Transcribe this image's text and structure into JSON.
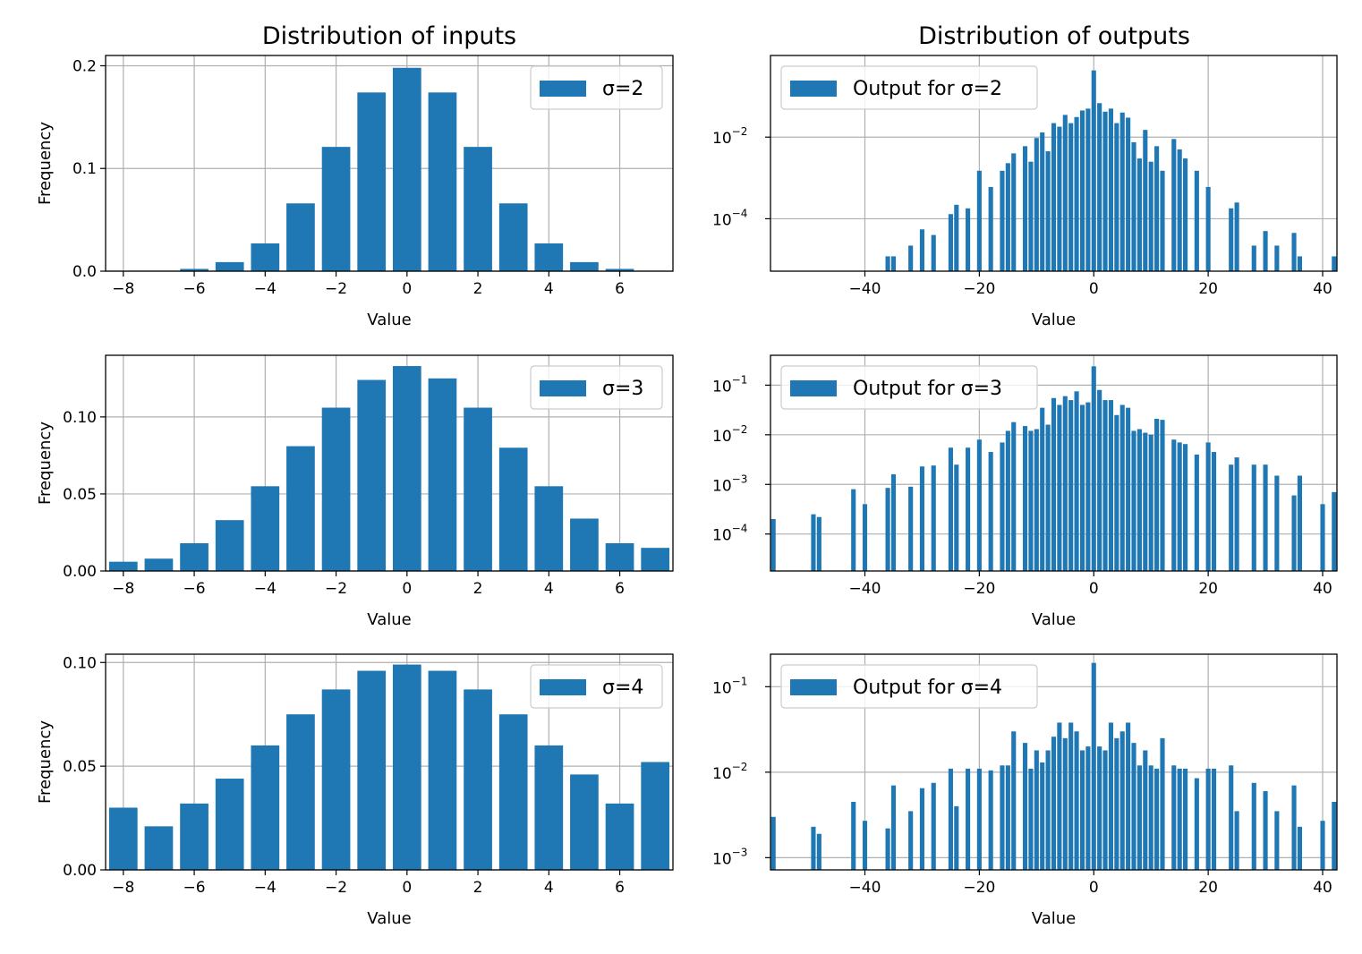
{
  "colors": {
    "bar": "#1f77b4",
    "grid": "#b0b0b0",
    "axis": "#000000"
  },
  "column_titles": {
    "left": "Distribution of inputs",
    "right": "Distribution of outputs"
  },
  "chart_data": [
    {
      "type": "bar",
      "panel": "inputs-sigma-2",
      "legend": "σ=2",
      "legend_position": "upper right",
      "xlabel": "Value",
      "ylabel": "Frequency",
      "x": [
        -8,
        -7,
        -6,
        -5,
        -4,
        -3,
        -2,
        -1,
        0,
        1,
        2,
        3,
        4,
        5,
        6,
        7
      ],
      "values": [
        0.0001,
        0.0004,
        0.0022,
        0.0088,
        0.027,
        0.066,
        0.121,
        0.174,
        0.198,
        0.174,
        0.121,
        0.066,
        0.027,
        0.0088,
        0.0022,
        0.0004
      ],
      "xlim": [
        -8.5,
        7.5
      ],
      "ylim": [
        0,
        0.21
      ],
      "xticks": [
        -8,
        -6,
        -4,
        -2,
        0,
        2,
        4,
        6
      ],
      "xtick_labels": [
        "−8",
        "−6",
        "−4",
        "−2",
        "0",
        "2",
        "4",
        "6"
      ],
      "yticks": [
        0,
        0.1,
        0.2
      ],
      "ytick_labels": [
        "0.0",
        "0.1",
        "0.2"
      ]
    },
    {
      "type": "bar",
      "panel": "outputs-sigma-2",
      "yscale": "log",
      "legend": "Output for σ=2",
      "legend_position": "upper left",
      "xlabel": "Value",
      "x": [
        -36,
        -35,
        -32,
        -30,
        -28,
        -25,
        -24,
        -22,
        -20,
        -18,
        -16,
        -15,
        -14,
        -12,
        -11,
        -10,
        -9,
        -8,
        -7,
        -6,
        -5,
        -4,
        -3,
        -2,
        -1,
        0,
        1,
        2,
        3,
        4,
        5,
        6,
        7,
        8,
        9,
        10,
        11,
        12,
        14,
        15,
        16,
        18,
        20,
        24,
        25,
        28,
        30,
        32,
        35,
        36,
        42
      ],
      "values": [
        1.2e-05,
        1.2e-05,
        2.2e-05,
        5.5e-05,
        4e-05,
        0.00013,
        0.00022,
        0.00018,
        0.0015,
        0.0006,
        0.0015,
        0.0023,
        0.004,
        0.006,
        0.0025,
        0.0095,
        0.013,
        0.0045,
        0.022,
        0.018,
        0.035,
        0.022,
        0.031,
        0.045,
        0.05,
        0.43,
        0.068,
        0.042,
        0.05,
        0.022,
        0.04,
        0.03,
        0.0075,
        0.003,
        0.015,
        0.0025,
        0.006,
        0.0015,
        0.009,
        0.005,
        0.003,
        0.0015,
        0.0006,
        0.00018,
        0.00025,
        2.2e-05,
        5e-05,
        2.2e-05,
        4.5e-05,
        1.2e-05,
        1.2e-05
      ],
      "xlim": [
        -56.5,
        42.5
      ],
      "ylim": [
        5.2e-06,
        1.0
      ],
      "xticks": [
        -40,
        -20,
        0,
        20,
        40
      ],
      "xtick_labels": [
        "−40",
        "−20",
        "0",
        "20",
        "40"
      ],
      "yticks": [
        0.0001,
        0.01
      ],
      "ytick_exponents": [
        "−4",
        "−2"
      ]
    },
    {
      "type": "bar",
      "panel": "inputs-sigma-3",
      "legend": "σ=3",
      "legend_position": "upper right",
      "xlabel": "Value",
      "ylabel": "Frequency",
      "x": [
        -8,
        -7,
        -6,
        -5,
        -4,
        -3,
        -2,
        -1,
        0,
        1,
        2,
        3,
        4,
        5,
        6,
        7
      ],
      "values": [
        0.006,
        0.008,
        0.018,
        0.033,
        0.055,
        0.081,
        0.106,
        0.124,
        0.133,
        0.125,
        0.106,
        0.08,
        0.055,
        0.034,
        0.018,
        0.015
      ],
      "xlim": [
        -8.5,
        7.5
      ],
      "ylim": [
        0,
        0.14
      ],
      "xticks": [
        -8,
        -6,
        -4,
        -2,
        0,
        2,
        4,
        6
      ],
      "xtick_labels": [
        "−8",
        "−6",
        "−4",
        "−2",
        "0",
        "2",
        "4",
        "6"
      ],
      "yticks": [
        0,
        0.05,
        0.1
      ],
      "ytick_labels": [
        "0.00",
        "0.05",
        "0.10"
      ]
    },
    {
      "type": "bar",
      "panel": "outputs-sigma-3",
      "yscale": "log",
      "legend": "Output for σ=3",
      "legend_position": "upper left",
      "xlabel": "Value",
      "x": [
        -56,
        -49,
        -48,
        -42,
        -40,
        -36,
        -35,
        -32,
        -30,
        -28,
        -25,
        -24,
        -22,
        -20,
        -18,
        -16,
        -15,
        -14,
        -12,
        -11,
        -10,
        -9,
        -8,
        -7,
        -6,
        -5,
        -4,
        -3,
        -2,
        -1,
        0,
        1,
        2,
        3,
        4,
        5,
        6,
        7,
        8,
        9,
        10,
        11,
        12,
        14,
        15,
        16,
        18,
        20,
        21,
        24,
        25,
        28,
        30,
        32,
        35,
        36,
        40,
        42
      ],
      "values": [
        0.0002,
        0.00025,
        0.00022,
        0.0008,
        0.0004,
        0.00085,
        0.0016,
        0.0009,
        0.0023,
        0.0024,
        0.0055,
        0.0025,
        0.0055,
        0.008,
        0.0045,
        0.007,
        0.012,
        0.018,
        0.015,
        0.012,
        0.013,
        0.035,
        0.016,
        0.055,
        0.04,
        0.06,
        0.05,
        0.075,
        0.04,
        0.045,
        0.24,
        0.08,
        0.05,
        0.05,
        0.025,
        0.04,
        0.035,
        0.012,
        0.013,
        0.011,
        0.01,
        0.021,
        0.02,
        0.008,
        0.007,
        0.0065,
        0.004,
        0.007,
        0.0045,
        0.0025,
        0.0035,
        0.0025,
        0.0025,
        0.0015,
        0.0006,
        0.0015,
        0.0004,
        0.0007
      ],
      "xlim": [
        -56.5,
        42.5
      ],
      "ylim": [
        1.8e-05,
        0.4
      ],
      "xticks": [
        -40,
        -20,
        0,
        20,
        40
      ],
      "xtick_labels": [
        "−40",
        "−20",
        "0",
        "20",
        "40"
      ],
      "yticks": [
        0.0001,
        0.001,
        0.01,
        0.1
      ],
      "ytick_exponents": [
        "−4",
        "−3",
        "−2",
        "−1"
      ]
    },
    {
      "type": "bar",
      "panel": "inputs-sigma-4",
      "legend": "σ=4",
      "legend_position": "upper right",
      "xlabel": "Value",
      "ylabel": "Frequency",
      "x": [
        -8,
        -7,
        -6,
        -5,
        -4,
        -3,
        -2,
        -1,
        0,
        1,
        2,
        3,
        4,
        5,
        6,
        7
      ],
      "values": [
        0.03,
        0.021,
        0.032,
        0.044,
        0.06,
        0.075,
        0.087,
        0.096,
        0.099,
        0.096,
        0.087,
        0.075,
        0.06,
        0.046,
        0.032,
        0.052
      ],
      "xlim": [
        -8.5,
        7.5
      ],
      "ylim": [
        0,
        0.104
      ],
      "xticks": [
        -8,
        -6,
        -4,
        -2,
        0,
        2,
        4,
        6
      ],
      "xtick_labels": [
        "−8",
        "−6",
        "−4",
        "−2",
        "0",
        "2",
        "4",
        "6"
      ],
      "yticks": [
        0,
        0.05,
        0.1
      ],
      "ytick_labels": [
        "0.00",
        "0.05",
        "0.10"
      ]
    },
    {
      "type": "bar",
      "panel": "outputs-sigma-4",
      "yscale": "log",
      "legend": "Output for σ=4",
      "legend_position": "upper left",
      "xlabel": "Value",
      "x": [
        -56,
        -49,
        -48,
        -42,
        -40,
        -36,
        -35,
        -32,
        -30,
        -28,
        -25,
        -24,
        -22,
        -20,
        -18,
        -16,
        -15,
        -14,
        -12,
        -11,
        -10,
        -9,
        -8,
        -7,
        -6,
        -5,
        -4,
        -3,
        -2,
        -1,
        0,
        1,
        2,
        3,
        4,
        5,
        6,
        7,
        8,
        9,
        10,
        11,
        12,
        14,
        15,
        16,
        18,
        20,
        21,
        24,
        25,
        28,
        30,
        32,
        35,
        36,
        40,
        42
      ],
      "values": [
        0.003,
        0.0023,
        0.0019,
        0.0045,
        0.0027,
        0.0022,
        0.007,
        0.0035,
        0.0065,
        0.0075,
        0.011,
        0.004,
        0.011,
        0.011,
        0.0105,
        0.012,
        0.012,
        0.03,
        0.022,
        0.011,
        0.018,
        0.013,
        0.018,
        0.026,
        0.038,
        0.025,
        0.038,
        0.03,
        0.018,
        0.02,
        0.19,
        0.02,
        0.018,
        0.038,
        0.025,
        0.03,
        0.038,
        0.022,
        0.012,
        0.018,
        0.012,
        0.011,
        0.025,
        0.012,
        0.011,
        0.011,
        0.0085,
        0.011,
        0.011,
        0.012,
        0.0035,
        0.0075,
        0.006,
        0.0035,
        0.007,
        0.0023,
        0.0027,
        0.0045
      ],
      "xlim": [
        -56.5,
        42.5
      ],
      "ylim": [
        0.00072,
        0.24
      ],
      "xticks": [
        -40,
        -20,
        0,
        20,
        40
      ],
      "xtick_labels": [
        "−40",
        "−20",
        "0",
        "20",
        "40"
      ],
      "yticks": [
        0.001,
        0.01,
        0.1
      ],
      "ytick_exponents": [
        "−3",
        "−2",
        "−1"
      ]
    }
  ]
}
